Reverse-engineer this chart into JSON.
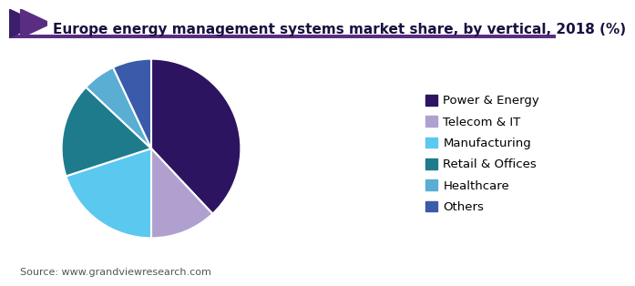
{
  "title": "Europe energy management systems market share, by vertical, 2018 (%)",
  "source": "Source: www.grandviewresearch.com",
  "labels": [
    "Power & Energy",
    "Telecom & IT",
    "Manufacturing",
    "Retail & Offices",
    "Healthcare",
    "Others"
  ],
  "values": [
    38,
    12,
    20,
    17,
    6,
    7
  ],
  "colors": [
    "#2d1460",
    "#b0a0d0",
    "#5bc8f0",
    "#1e7b8c",
    "#5aaed4",
    "#3a5aaa"
  ],
  "startangle": 90,
  "title_fontsize": 11,
  "legend_fontsize": 9.5,
  "source_fontsize": 8,
  "background_color": "#ffffff",
  "wedge_edge_color": "white",
  "wedge_linewidth": 1.5,
  "header_line_color": "#5a2d82",
  "title_color": "#1a1040",
  "source_color": "#555555"
}
